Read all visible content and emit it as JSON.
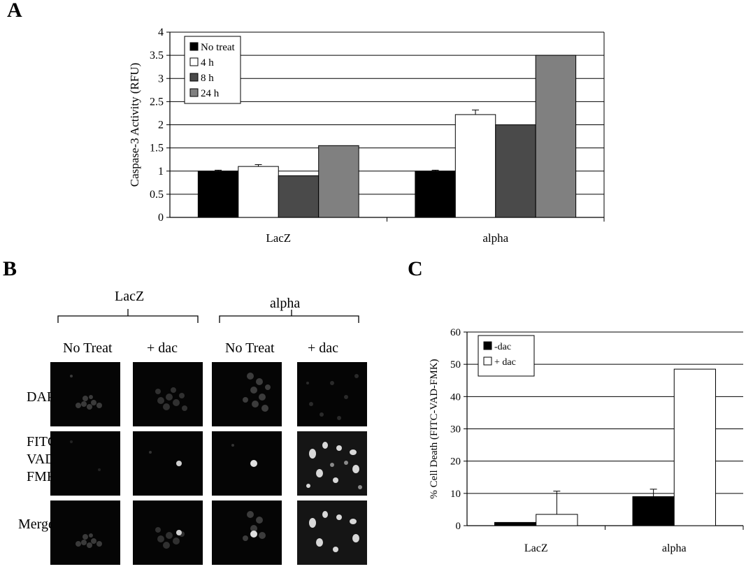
{
  "panels": {
    "a": "A",
    "b": "B",
    "c": "C"
  },
  "chart_a": {
    "type": "bar",
    "ylabel": "Caspase-3 Activity (RFU)",
    "ylim": [
      0,
      4
    ],
    "yticks": [
      "0",
      "0.5",
      "1",
      "1.5",
      "2",
      "2.5",
      "3",
      "3.5",
      "4"
    ],
    "categories": [
      "LacZ",
      "alpha"
    ],
    "series": [
      {
        "name": "No treat",
        "color": "#000000",
        "values": [
          1.0,
          1.0
        ],
        "err": [
          0.02,
          0.02
        ]
      },
      {
        "name": "4 h",
        "color": "#ffffff",
        "values": [
          1.1,
          2.22
        ],
        "err": [
          0.04,
          0.1
        ]
      },
      {
        "name": "8 h",
        "color": "#4a4a4a",
        "values": [
          0.9,
          2.0
        ],
        "err": [
          0,
          0
        ]
      },
      {
        "name": "24 h",
        "color": "#808080",
        "values": [
          1.55,
          3.5
        ],
        "err": [
          0,
          0
        ]
      }
    ],
    "grid": true,
    "legend": "top-left"
  },
  "chart_c": {
    "type": "bar",
    "ylabel": "% Cell Death (FITC-VAD-FMK)",
    "ylim": [
      0,
      60
    ],
    "yticks": [
      "0",
      "10",
      "20",
      "30",
      "40",
      "50",
      "60"
    ],
    "categories": [
      "LacZ",
      "alpha"
    ],
    "series": [
      {
        "name": "-dac",
        "color": "#000000",
        "values": [
          1,
          9
        ],
        "err": [
          0,
          2.3
        ]
      },
      {
        "name": "+ dac",
        "color": "#ffffff",
        "values": [
          3.5,
          48.5
        ],
        "err": [
          7.2,
          0
        ]
      }
    ],
    "grid": true,
    "legend": "top-left"
  },
  "micrographs": {
    "groups": [
      "LacZ",
      "alpha"
    ],
    "columns": [
      "No Treat",
      "+ dac",
      "No Treat",
      "+ dac"
    ],
    "rows": [
      "DAPI",
      "FITC-\nVAD-\nFMK",
      "Merge"
    ]
  }
}
